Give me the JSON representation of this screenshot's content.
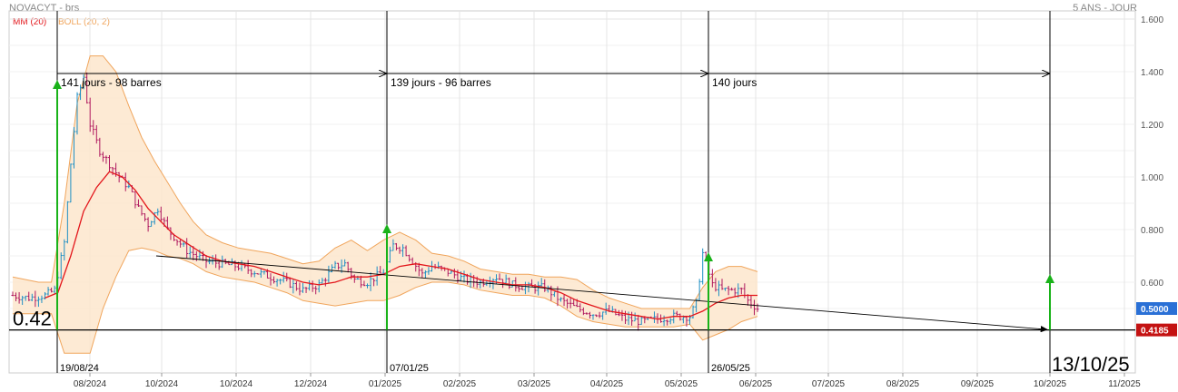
{
  "header": {
    "symbol": "NOVACYT - brs",
    "period": "5 ANS - JOUR"
  },
  "legend": {
    "ma": "MM (20)",
    "boll": "BOLL (20, 2)"
  },
  "colors": {
    "ma": "#e3161b",
    "boll_line": "#f0a55c",
    "boll_fill": "#fde6cc",
    "bar_up": "#1f8fc4",
    "bar_down": "#b0195f",
    "arrow": "#19b219",
    "price_tag": "#2a70d6",
    "level_tag": "#c41212"
  },
  "chart_data": {
    "type": "ohlc",
    "y_ticks": [
      "1.600",
      "1.400",
      "1.200",
      "1.000",
      "0.800",
      "0.600"
    ],
    "x_ticks": [
      "08/2024",
      "10/2024",
      "10/2024",
      "12/2024",
      "01/2025",
      "02/2025",
      "03/2025",
      "04/2025",
      "05/2025",
      "06/2025",
      "07/2025",
      "08/2025",
      "09/2025",
      "10/2025",
      "11/2025"
    ],
    "ylim": [
      0.34,
      1.63
    ],
    "last_price": "0.5000",
    "level": {
      "value": 0.4185,
      "label": "0.4185",
      "text": "0.42"
    },
    "annotations": [
      {
        "label": "141 jours - 98 barres",
        "date": "19/08/24"
      },
      {
        "label": "139 jours - 96 barres",
        "date": "07/01/25"
      },
      {
        "label": "140 jours",
        "date": "26/05/25"
      }
    ],
    "target_date": "13/10/25",
    "trend": {
      "from": 0.7,
      "to": 0.42
    },
    "close_path": [
      [
        0,
        0.55
      ],
      [
        5,
        0.54
      ],
      [
        10,
        0.55
      ],
      [
        13,
        0.57
      ],
      [
        16,
        0.75
      ],
      [
        18,
        1.05
      ],
      [
        20,
        1.3
      ],
      [
        22,
        1.38
      ],
      [
        24,
        1.2
      ],
      [
        27,
        1.1
      ],
      [
        30,
        1.05
      ],
      [
        33,
        1.0
      ],
      [
        36,
        0.96
      ],
      [
        39,
        0.88
      ],
      [
        42,
        0.82
      ],
      [
        45,
        0.88
      ],
      [
        48,
        0.8
      ],
      [
        51,
        0.76
      ],
      [
        54,
        0.72
      ],
      [
        57,
        0.7
      ],
      [
        60,
        0.68
      ],
      [
        65,
        0.67
      ],
      [
        70,
        0.66
      ],
      [
        75,
        0.64
      ],
      [
        80,
        0.62
      ],
      [
        85,
        0.6
      ],
      [
        90,
        0.57
      ],
      [
        95,
        0.59
      ],
      [
        100,
        0.66
      ],
      [
        103,
        0.67
      ],
      [
        106,
        0.61
      ],
      [
        110,
        0.6
      ],
      [
        115,
        0.64
      ],
      [
        118,
        0.74
      ],
      [
        121,
        0.73
      ],
      [
        124,
        0.68
      ],
      [
        127,
        0.63
      ],
      [
        130,
        0.66
      ],
      [
        135,
        0.64
      ],
      [
        140,
        0.61
      ],
      [
        145,
        0.6
      ],
      [
        150,
        0.62
      ],
      [
        155,
        0.59
      ],
      [
        160,
        0.58
      ],
      [
        165,
        0.58
      ],
      [
        170,
        0.53
      ],
      [
        175,
        0.5
      ],
      [
        180,
        0.48
      ],
      [
        185,
        0.49
      ],
      [
        190,
        0.46
      ],
      [
        195,
        0.45
      ],
      [
        200,
        0.46
      ],
      [
        205,
        0.47
      ],
      [
        210,
        0.47
      ],
      [
        212,
        0.52
      ],
      [
        214,
        0.71
      ],
      [
        217,
        0.59
      ],
      [
        220,
        0.57
      ],
      [
        223,
        0.57
      ],
      [
        226,
        0.57
      ],
      [
        228,
        0.53
      ],
      [
        231,
        0.5
      ]
    ],
    "ma_path": [
      [
        10,
        0.54
      ],
      [
        14,
        0.56
      ],
      [
        18,
        0.7
      ],
      [
        22,
        0.87
      ],
      [
        26,
        0.96
      ],
      [
        30,
        1.02
      ],
      [
        34,
        1.0
      ],
      [
        38,
        0.95
      ],
      [
        42,
        0.88
      ],
      [
        46,
        0.83
      ],
      [
        50,
        0.78
      ],
      [
        55,
        0.74
      ],
      [
        60,
        0.7
      ],
      [
        65,
        0.68
      ],
      [
        70,
        0.67
      ],
      [
        75,
        0.66
      ],
      [
        80,
        0.64
      ],
      [
        85,
        0.62
      ],
      [
        90,
        0.6
      ],
      [
        95,
        0.59
      ],
      [
        100,
        0.6
      ],
      [
        105,
        0.62
      ],
      [
        110,
        0.62
      ],
      [
        115,
        0.63
      ],
      [
        120,
        0.66
      ],
      [
        125,
        0.67
      ],
      [
        130,
        0.66
      ],
      [
        135,
        0.65
      ],
      [
        140,
        0.63
      ],
      [
        145,
        0.61
      ],
      [
        150,
        0.6
      ],
      [
        155,
        0.59
      ],
      [
        160,
        0.59
      ],
      [
        165,
        0.58
      ],
      [
        170,
        0.56
      ],
      [
        175,
        0.53
      ],
      [
        180,
        0.51
      ],
      [
        185,
        0.49
      ],
      [
        190,
        0.48
      ],
      [
        195,
        0.47
      ],
      [
        200,
        0.46
      ],
      [
        205,
        0.47
      ],
      [
        210,
        0.47
      ],
      [
        214,
        0.49
      ],
      [
        218,
        0.52
      ],
      [
        222,
        0.54
      ],
      [
        226,
        0.55
      ],
      [
        231,
        0.55
      ]
    ],
    "upper_path": [
      [
        0,
        0.62
      ],
      [
        8,
        0.6
      ],
      [
        12,
        0.6
      ],
      [
        16,
        0.9
      ],
      [
        20,
        1.28
      ],
      [
        24,
        1.46
      ],
      [
        28,
        1.46
      ],
      [
        32,
        1.4
      ],
      [
        36,
        1.27
      ],
      [
        40,
        1.15
      ],
      [
        44,
        1.06
      ],
      [
        48,
        0.98
      ],
      [
        52,
        0.9
      ],
      [
        56,
        0.83
      ],
      [
        60,
        0.78
      ],
      [
        65,
        0.75
      ],
      [
        70,
        0.73
      ],
      [
        75,
        0.72
      ],
      [
        80,
        0.71
      ],
      [
        85,
        0.69
      ],
      [
        90,
        0.67
      ],
      [
        95,
        0.68
      ],
      [
        100,
        0.73
      ],
      [
        105,
        0.76
      ],
      [
        110,
        0.72
      ],
      [
        115,
        0.76
      ],
      [
        120,
        0.79
      ],
      [
        125,
        0.76
      ],
      [
        130,
        0.71
      ],
      [
        135,
        0.7
      ],
      [
        140,
        0.68
      ],
      [
        145,
        0.65
      ],
      [
        150,
        0.64
      ],
      [
        155,
        0.63
      ],
      [
        160,
        0.63
      ],
      [
        165,
        0.62
      ],
      [
        170,
        0.62
      ],
      [
        175,
        0.61
      ],
      [
        180,
        0.57
      ],
      [
        185,
        0.54
      ],
      [
        190,
        0.52
      ],
      [
        195,
        0.5
      ],
      [
        200,
        0.5
      ],
      [
        205,
        0.5
      ],
      [
        210,
        0.5
      ],
      [
        214,
        0.58
      ],
      [
        218,
        0.64
      ],
      [
        222,
        0.66
      ],
      [
        226,
        0.66
      ],
      [
        231,
        0.64
      ]
    ],
    "lower_path": [
      [
        0,
        0.48
      ],
      [
        8,
        0.48
      ],
      [
        12,
        0.48
      ],
      [
        16,
        0.33
      ],
      [
        20,
        0.33
      ],
      [
        24,
        0.33
      ],
      [
        28,
        0.5
      ],
      [
        32,
        0.62
      ],
      [
        36,
        0.72
      ],
      [
        40,
        0.73
      ],
      [
        44,
        0.72
      ],
      [
        48,
        0.7
      ],
      [
        52,
        0.69
      ],
      [
        56,
        0.67
      ],
      [
        60,
        0.64
      ],
      [
        65,
        0.62
      ],
      [
        70,
        0.61
      ],
      [
        75,
        0.6
      ],
      [
        80,
        0.58
      ],
      [
        85,
        0.56
      ],
      [
        90,
        0.53
      ],
      [
        95,
        0.52
      ],
      [
        100,
        0.51
      ],
      [
        105,
        0.52
      ],
      [
        110,
        0.53
      ],
      [
        115,
        0.53
      ],
      [
        120,
        0.55
      ],
      [
        125,
        0.58
      ],
      [
        130,
        0.6
      ],
      [
        135,
        0.6
      ],
      [
        140,
        0.59
      ],
      [
        145,
        0.57
      ],
      [
        150,
        0.56
      ],
      [
        155,
        0.55
      ],
      [
        160,
        0.55
      ],
      [
        165,
        0.54
      ],
      [
        170,
        0.51
      ],
      [
        175,
        0.47
      ],
      [
        180,
        0.45
      ],
      [
        185,
        0.44
      ],
      [
        190,
        0.43
      ],
      [
        195,
        0.43
      ],
      [
        200,
        0.43
      ],
      [
        205,
        0.43
      ],
      [
        210,
        0.44
      ],
      [
        214,
        0.38
      ],
      [
        218,
        0.4
      ],
      [
        222,
        0.42
      ],
      [
        226,
        0.45
      ],
      [
        231,
        0.47
      ]
    ]
  }
}
